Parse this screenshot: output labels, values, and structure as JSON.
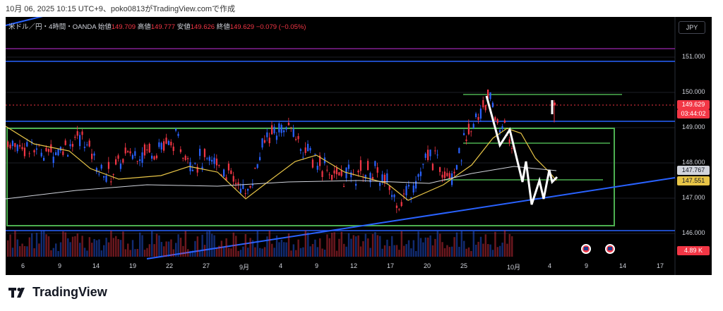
{
  "caption": "10月 06, 2025 10:15 UTC+9、poko0813がTradingView.comで作成",
  "legend": {
    "symbol": "米ドル／円・4時間・OANDA",
    "open_label": "始値",
    "open": "149.709",
    "high_label": "高値",
    "high": "149.777",
    "low_label": "安値",
    "low": "149.626",
    "close_label": "終値",
    "close": "149.629",
    "change": "−0.079 (−0.05%)"
  },
  "currency_button": "JPY",
  "price_axis": [
    "151.000",
    "150.000",
    "149.000",
    "148.000",
    "147.000",
    "146.000"
  ],
  "tags": {
    "last_price": "149.629",
    "countdown": "03:44:02",
    "ma_long": "147.767",
    "ma_short": "147.551",
    "volume": "4.89 K"
  },
  "time_axis": [
    "6",
    "9",
    "14",
    "19",
    "22",
    "27",
    "9月",
    "4",
    "9",
    "12",
    "17",
    "20",
    "25",
    "10月",
    "4",
    "9",
    "14",
    "17"
  ],
  "event_icons": [
    "us-flag-icon",
    "us-flag-icon"
  ],
  "colors": {
    "up": "#2962ff",
    "down": "#f23645",
    "ma_short": "#e8c547",
    "ma_long": "#d1d4dc",
    "rect": "#4caf50",
    "trend": "#2962ff",
    "resistance": "#9c27b0",
    "background": "#000000"
  },
  "brand": "TradingView"
}
